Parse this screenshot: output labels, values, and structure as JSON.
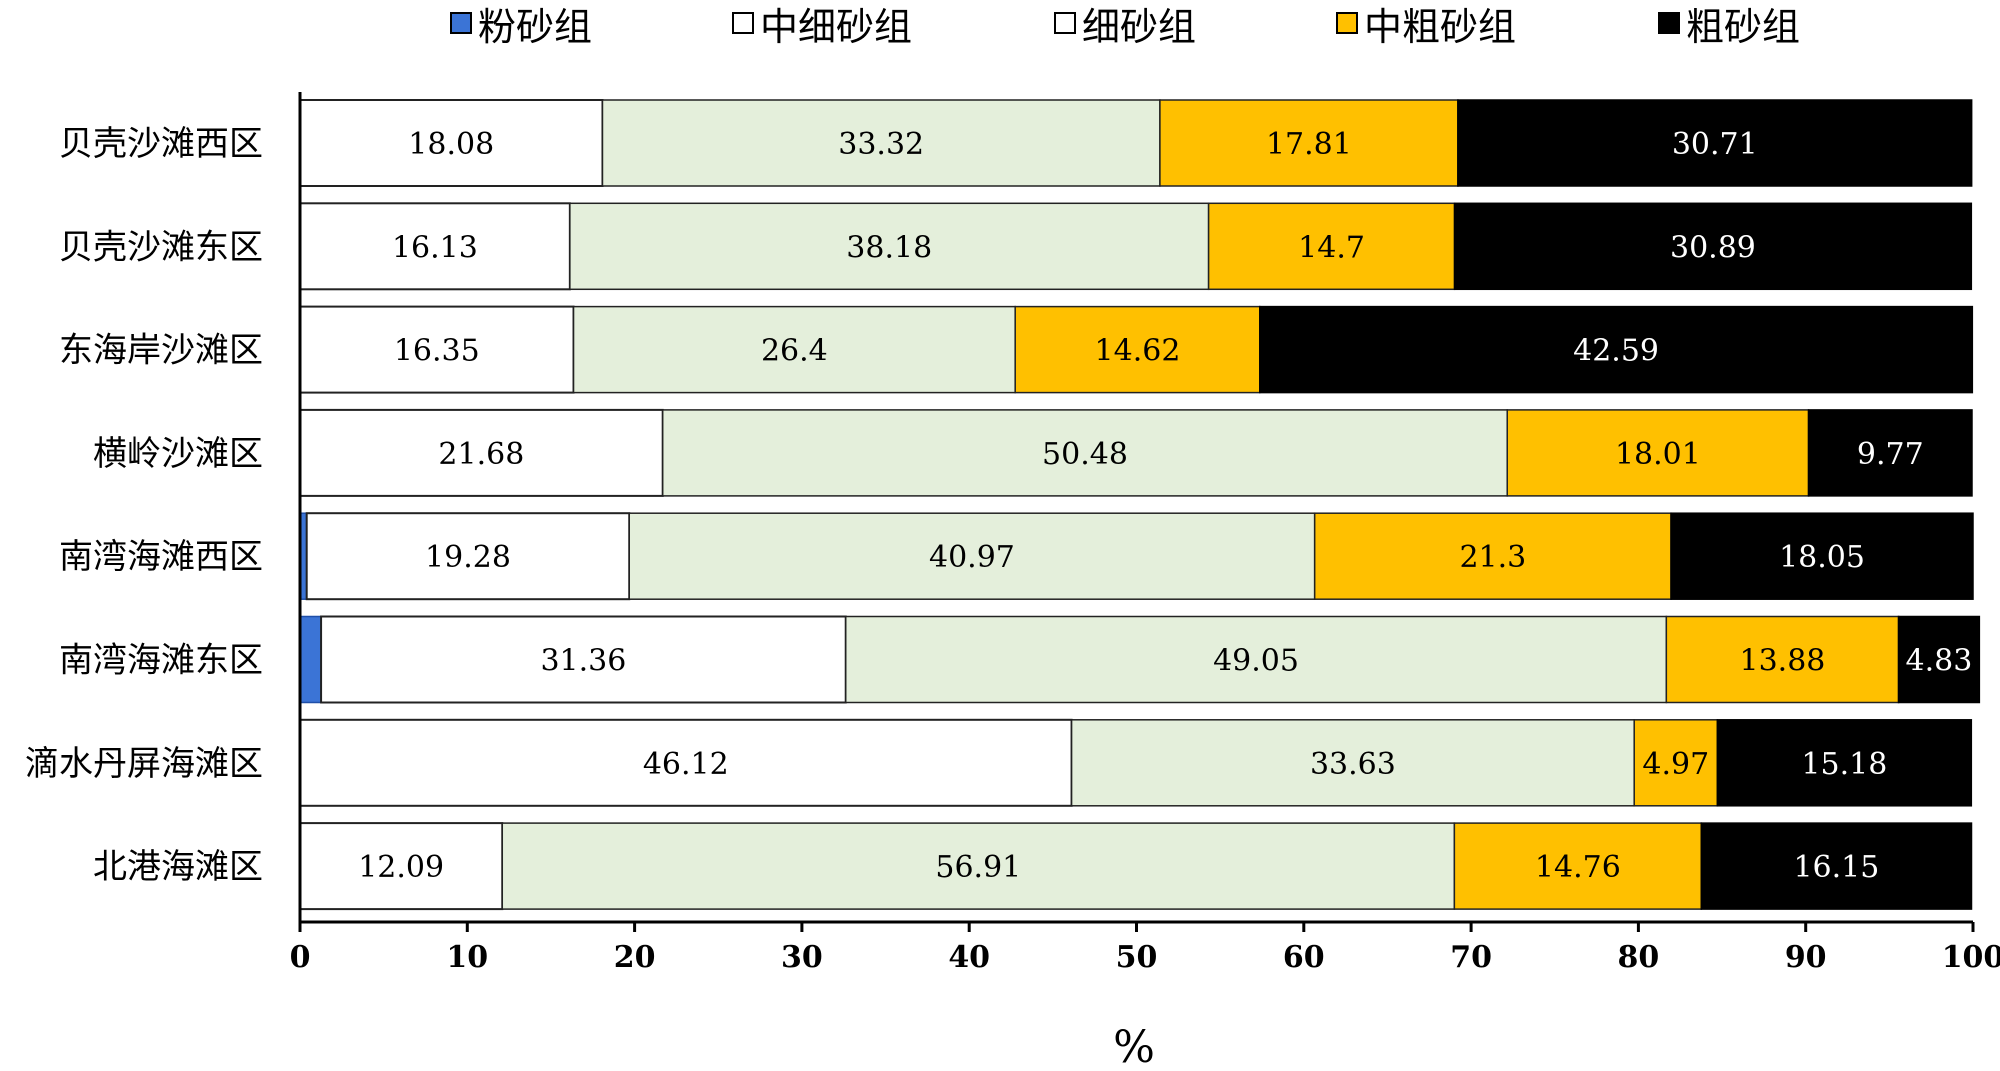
{
  "chart_data": {
    "type": "bar",
    "orientation": "horizontal",
    "stacked": true,
    "title": "",
    "xlabel": "%",
    "ylabel": "",
    "xlim": [
      0,
      100
    ],
    "xticks": [
      0,
      10,
      20,
      30,
      40,
      50,
      60,
      70,
      80,
      90,
      100
    ],
    "categories": [
      "贝壳沙滩西区",
      "贝壳沙滩东区",
      "东海岸沙滩区",
      "横岭沙滩区",
      "南湾海滩西区",
      "南湾海滩东区",
      "滴水丹屏海滩区",
      "北港海滩区"
    ],
    "legend_position": "top",
    "series": [
      {
        "name": "粉砂组",
        "color": "#3b74d6",
        "show_labels": false,
        "values": [
          0,
          0,
          0,
          0,
          0.4,
          1.26,
          0,
          0
        ]
      },
      {
        "name": "中细砂组",
        "color": "#ffffff",
        "show_labels": true,
        "values": [
          18.08,
          16.13,
          16.35,
          21.68,
          19.28,
          31.36,
          46.12,
          12.09
        ]
      },
      {
        "name": "细砂组",
        "color": "#e4efdb",
        "show_labels": true,
        "values": [
          33.32,
          38.18,
          26.4,
          50.48,
          40.97,
          49.05,
          33.63,
          56.91
        ]
      },
      {
        "name": "中粗砂组",
        "color": "#ffc000",
        "show_labels": true,
        "values": [
          17.81,
          14.7,
          14.62,
          18.01,
          21.3,
          13.88,
          4.97,
          14.76
        ]
      },
      {
        "name": "粗砂组",
        "color": "#000000",
        "show_labels": true,
        "values": [
          30.71,
          30.89,
          42.59,
          9.77,
          18.05,
          4.83,
          15.18,
          16.15
        ]
      }
    ],
    "value_labels": [
      [
        "18.08",
        "33.32",
        "17.81",
        "30.71"
      ],
      [
        "16.13",
        "38.18",
        "14.7",
        "30.89"
      ],
      [
        "16.35",
        "26.4",
        "14.62",
        "42.59"
      ],
      [
        "21.68",
        "50.48",
        "18.01",
        "9.77"
      ],
      [
        "19.28",
        "40.97",
        "21.3",
        "18.05"
      ],
      [
        "31.36",
        "49.05",
        "13.88",
        "4.83"
      ],
      [
        "46.12",
        "33.63",
        "4.97",
        "15.18"
      ],
      [
        "12.09",
        "56.91",
        "14.76",
        "16.15"
      ]
    ]
  }
}
